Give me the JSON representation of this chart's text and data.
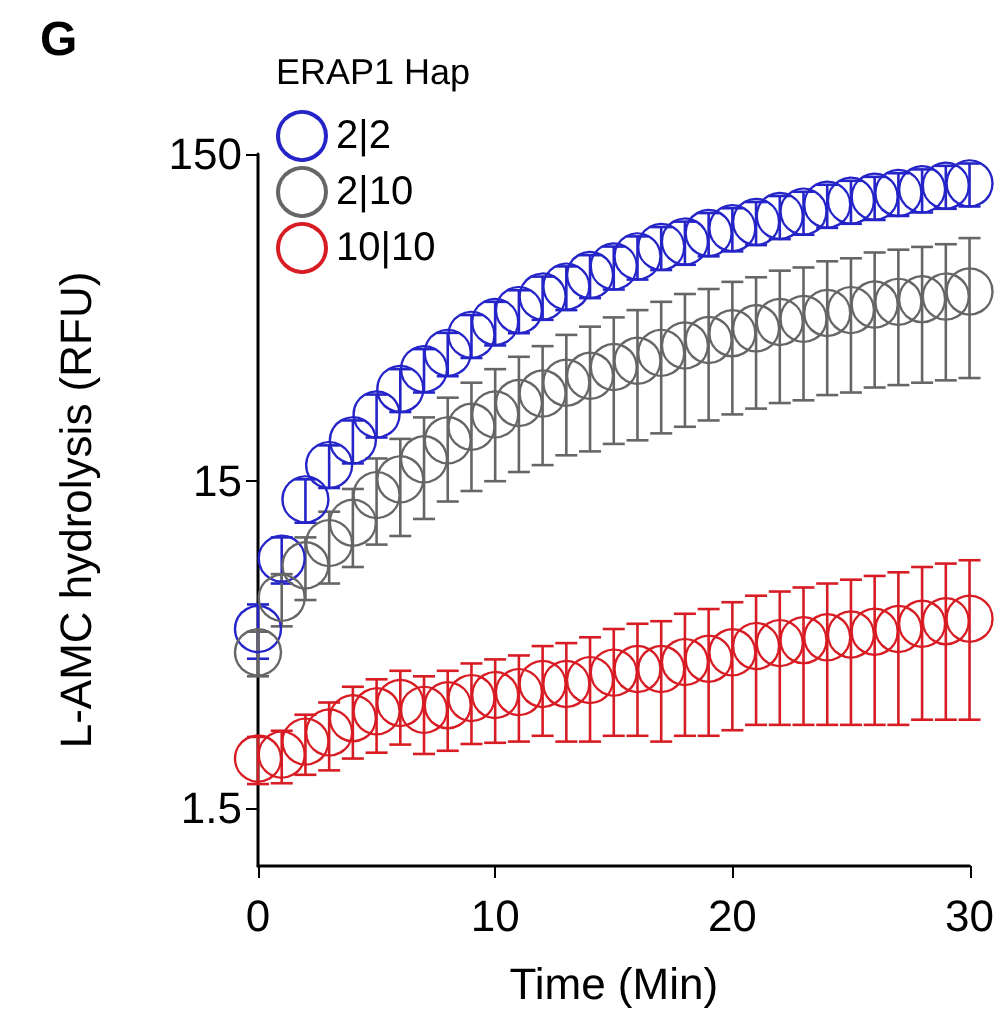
{
  "chart_data": {
    "type": "scatter",
    "xlabel": "Time (Min)",
    "ylabel": "L-AMC hydrolysis (RFU)",
    "legend_title": "ERAP1 Hap",
    "annotations": [
      "G"
    ],
    "x": [
      0,
      1,
      2,
      3,
      4,
      5,
      6,
      7,
      8,
      9,
      10,
      11,
      12,
      13,
      14,
      15,
      16,
      17,
      18,
      19,
      20,
      21,
      22,
      23,
      24,
      25,
      26,
      27,
      28,
      29,
      30
    ],
    "series": [
      {
        "name": "2|2",
        "color": "#2424c8",
        "values": [
          5.3,
          8.7,
          13.2,
          16.8,
          20,
          24,
          28.7,
          33,
          37,
          42,
          46,
          50,
          55,
          59,
          64,
          68,
          73,
          78,
          81,
          86,
          89,
          93,
          97,
          100,
          105,
          108,
          111,
          114,
          117,
          120,
          122
        ],
        "errors": [
          1,
          1.4,
          2,
          2.5,
          3,
          3.6,
          4.3,
          5,
          5.6,
          6.3,
          7,
          7.5,
          8.3,
          9,
          9.6,
          10.2,
          11,
          11.7,
          12.2,
          13,
          13.4,
          14,
          14.6,
          15,
          15.8,
          16.2,
          16.7,
          17,
          17.6,
          18,
          18.3
        ]
      },
      {
        "name": "2|10",
        "color": "#666666",
        "values": [
          4.5,
          6.6,
          8.3,
          9.7,
          11.2,
          13.6,
          15.2,
          17.5,
          20,
          22,
          24,
          26,
          27.8,
          30,
          31.5,
          33.5,
          35,
          37,
          39,
          40.5,
          42.5,
          44,
          46,
          47,
          49,
          50,
          52,
          53,
          54,
          55,
          57
        ],
        "errors": [
          0.7,
          1.2,
          1.8,
          2.4,
          3,
          4,
          5,
          6,
          7,
          8,
          9,
          10,
          11,
          12,
          13,
          14,
          15,
          16,
          17,
          17.5,
          18.5,
          19,
          20,
          20.5,
          21.5,
          22,
          23,
          23.5,
          24,
          24.5,
          26
        ]
      },
      {
        "name": "10|10",
        "color": "#d81c24",
        "values": [
          2.13,
          2.19,
          2.4,
          2.56,
          2.83,
          2.97,
          3.15,
          3,
          3.1,
          3.26,
          3.33,
          3.4,
          3.6,
          3.6,
          3.7,
          3.9,
          4,
          4,
          4.2,
          4.3,
          4.5,
          4.7,
          4.8,
          4.9,
          5,
          5.1,
          5.2,
          5.3,
          5.5,
          5.6,
          5.7
        ],
        "errors": [
          0.35,
          0.4,
          0.5,
          0.6,
          0.7,
          0.75,
          0.8,
          0.8,
          0.85,
          0.9,
          0.95,
          1,
          1.1,
          1.2,
          1.3,
          1.4,
          1.5,
          1.6,
          1.7,
          1.8,
          1.9,
          2,
          2.1,
          2.2,
          2.3,
          2.4,
          2.5,
          2.6,
          2.7,
          2.8,
          2.9
        ]
      }
    ],
    "xlim": [
      0,
      30
    ],
    "xticks": [
      0,
      10,
      20,
      30
    ],
    "ylim": [
      1,
      150
    ],
    "yticks": [
      1.5,
      15,
      150
    ],
    "log": "y",
    "marker": "circle",
    "legend": "top left",
    "grid": false
  }
}
